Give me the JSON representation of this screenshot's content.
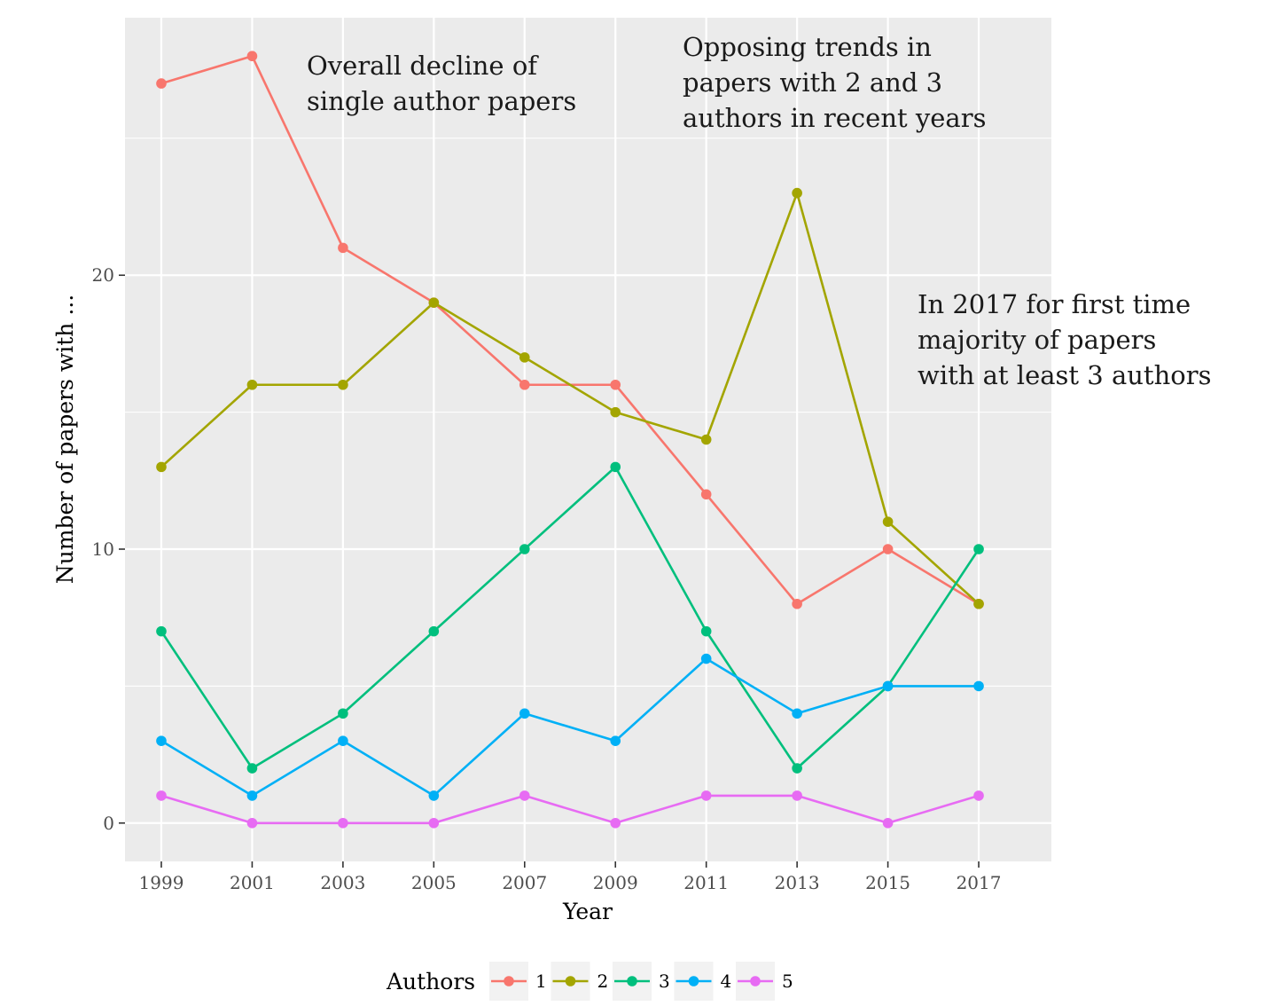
{
  "chart_data": {
    "type": "line",
    "x": [
      1999,
      2001,
      2003,
      2005,
      2007,
      2009,
      2011,
      2013,
      2015,
      2017
    ],
    "series": [
      {
        "name": "1",
        "color": "#F8766D",
        "values": [
          27,
          28,
          21,
          19,
          16,
          16,
          12,
          8,
          10,
          8
        ]
      },
      {
        "name": "2",
        "color": "#A3A500",
        "values": [
          13,
          16,
          16,
          19,
          17,
          15,
          14,
          23,
          11,
          8
        ]
      },
      {
        "name": "3",
        "color": "#00BF7D",
        "values": [
          7,
          2,
          4,
          7,
          10,
          13,
          7,
          2,
          5,
          10
        ]
      },
      {
        "name": "4",
        "color": "#00B0F6",
        "values": [
          3,
          1,
          3,
          1,
          4,
          3,
          6,
          4,
          5,
          5
        ]
      },
      {
        "name": "5",
        "color": "#E76BF3",
        "values": [
          1,
          0,
          0,
          0,
          1,
          0,
          1,
          1,
          0,
          1
        ]
      }
    ],
    "title": "",
    "xlabel": "Year",
    "ylabel": "Number of papers with ...",
    "xticks": [
      "1999",
      "2001",
      "2003",
      "2005",
      "2007",
      "2009",
      "2011",
      "2013",
      "2015",
      "2017"
    ],
    "yticks": [
      "0",
      "10",
      "20"
    ],
    "xlim": [
      1998.2,
      2018.6
    ],
    "ylim": [
      -1.4,
      29.4
    ],
    "grid": true,
    "legend": {
      "title": "Authors",
      "position": "bottom"
    },
    "annotations": [
      {
        "lines": [
          "Overall decline of",
          "single author papers"
        ]
      },
      {
        "lines": [
          "Opposing trends in",
          "papers with 2 and 3",
          "authors in recent years"
        ]
      },
      {
        "lines": [
          "In 2017 for first time",
          "majority of papers",
          "with at least 3 authors"
        ]
      }
    ]
  }
}
